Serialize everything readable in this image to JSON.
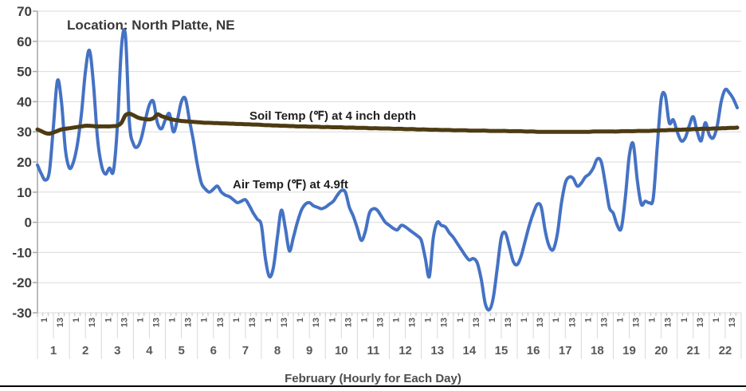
{
  "chart": {
    "title": "Location: North Platte, NE",
    "x_axis_title": "February (Hourly for Each Day)",
    "soil_label": "Soil Temp (℉) at 4 inch depth",
    "air_label": "Air Temp (℉) at 4.9ft"
  },
  "colors": {
    "background": "#FFFFFF",
    "gridline": "#D9D9D9",
    "axis_line": "#A6A6A6",
    "minor_tick": "#BFBFBF",
    "separator": "#D9D9D9",
    "y_tick_label": "#3F3F3F",
    "x_tick_label": "#595959",
    "title_text": "#3B3838",
    "annotation_text": "#1F1F1F",
    "air_line": "#4472C4",
    "soil_line": "#4D3B12",
    "bottom_border": "#000000"
  },
  "chart_data": {
    "type": "line",
    "title": "Location: North Platte, NE",
    "xlabel": "February (Hourly for Each Day)",
    "ylabel": "",
    "ylim": [
      -30,
      70
    ],
    "y_ticks": [
      70,
      60,
      50,
      40,
      30,
      20,
      10,
      0,
      -10,
      -20,
      -30
    ],
    "grid": "horizontal",
    "legend_position": "inline annotations above each line",
    "days_in_month_shown": 22,
    "hours_per_day": 24,
    "x_day_labels": [
      "1",
      "2",
      "3",
      "4",
      "5",
      "6",
      "7",
      "8",
      "9",
      "10",
      "11",
      "12",
      "13",
      "14",
      "15",
      "16",
      "17",
      "18",
      "19",
      "20",
      "21",
      "22"
    ],
    "x_hour_tick_labels": [
      "1",
      "13"
    ],
    "sample_hours": [
      1,
      4,
      7,
      10,
      13,
      16,
      19,
      22
    ],
    "series": [
      {
        "name": "Air Temp (℉) at 4.9ft",
        "color": "#4472C4",
        "stroke_width": 4,
        "values_by_day": [
          [
            19,
            16,
            14,
            17,
            32,
            47,
            40,
            24
          ],
          [
            18,
            20,
            26,
            36,
            50,
            57,
            46,
            28
          ],
          [
            19,
            16,
            18,
            17,
            32,
            58,
            62,
            33
          ],
          [
            26,
            25,
            28,
            34,
            39,
            40,
            33,
            31
          ],
          [
            34,
            36,
            30,
            34,
            40,
            41,
            34,
            27
          ],
          [
            19,
            13,
            11,
            10,
            11,
            12,
            10,
            9
          ],
          [
            8.5,
            7.5,
            6.5,
            7,
            7.5,
            5.5,
            3,
            1
          ],
          [
            -1,
            -12,
            -18,
            -15,
            -5,
            4,
            -2,
            -9.5
          ],
          [
            -5,
            0,
            4,
            6,
            6.5,
            5.5,
            5,
            4.5
          ],
          [
            5,
            6,
            7,
            9,
            10.5,
            10,
            5,
            2
          ],
          [
            -2,
            -6,
            -3,
            3,
            4.5,
            4,
            2,
            0
          ],
          [
            -1,
            -2,
            -2.5,
            -1,
            -1.5,
            -2.5,
            -3.5,
            -4.5
          ],
          [
            -6,
            -12,
            -18,
            -5,
            0,
            -1,
            -1.5,
            -3.5
          ],
          [
            -5,
            -7,
            -9,
            -11,
            -12.5,
            -12,
            -13.5,
            -19
          ],
          [
            -27,
            -29,
            -25,
            -15,
            -5,
            -3.5,
            -8,
            -13
          ],
          [
            -14,
            -11,
            -6,
            -1,
            3,
            6,
            5,
            -3
          ],
          [
            -8,
            -9,
            -4,
            6,
            13,
            15,
            14.5,
            12
          ],
          [
            13,
            15,
            16,
            18,
            21,
            20,
            13,
            5
          ],
          [
            3,
            -1,
            -2,
            8,
            22,
            26,
            14,
            6
          ],
          [
            7,
            6.5,
            8,
            25,
            41,
            42,
            33,
            34
          ],
          [
            30,
            27,
            28,
            32,
            35,
            30,
            27,
            33
          ],
          [
            29,
            28,
            32,
            40,
            44,
            43,
            41,
            38
          ]
        ]
      },
      {
        "name": "Soil Temp (℉) at 4 inch depth",
        "color": "#4D3B12",
        "stroke_width": 5,
        "values_by_day": [
          [
            30.8,
            30.2,
            29.6,
            29.4,
            29.8,
            30.3,
            30.8,
            31
          ],
          [
            31.2,
            31.4,
            31.6,
            31.8,
            32,
            32,
            31.9,
            31.8
          ],
          [
            31.8,
            31.8,
            31.8,
            31.9,
            32,
            33,
            35.5,
            36
          ],
          [
            35.5,
            34.8,
            34.4,
            34.2,
            34.1,
            34.5,
            35.8,
            35.2
          ],
          [
            34.8,
            34.3,
            34,
            33.8,
            33.6,
            33.5,
            33.4,
            33.3
          ],
          [
            33.2,
            33.1,
            33,
            33,
            32.9,
            32.9,
            32.8,
            32.8
          ],
          [
            32.7,
            32.7,
            32.6,
            32.6,
            32.5,
            32.5,
            32.4,
            32.4
          ],
          [
            32.3,
            32.2,
            32.2,
            32.1,
            32.1,
            32,
            32,
            31.9
          ],
          [
            31.9,
            31.8,
            31.8,
            31.8,
            31.7,
            31.7,
            31.7,
            31.6
          ],
          [
            31.6,
            31.6,
            31.5,
            31.5,
            31.5,
            31.4,
            31.4,
            31.4
          ],
          [
            31.3,
            31.3,
            31.3,
            31.2,
            31.2,
            31.2,
            31.1,
            31.1
          ],
          [
            31.1,
            31,
            31,
            31,
            30.9,
            30.9,
            30.9,
            30.8
          ],
          [
            30.8,
            30.8,
            30.7,
            30.7,
            30.7,
            30.6,
            30.6,
            30.6
          ],
          [
            30.5,
            30.5,
            30.5,
            30.5,
            30.4,
            30.4,
            30.4,
            30.4
          ],
          [
            30.4,
            30.3,
            30.3,
            30.3,
            30.3,
            30.3,
            30.2,
            30.2
          ],
          [
            30.2,
            30.2,
            30.1,
            30.1,
            30.1,
            30,
            30,
            30
          ],
          [
            30,
            30,
            30,
            30,
            30,
            30,
            30,
            30
          ],
          [
            30,
            30,
            30,
            30.1,
            30.1,
            30.1,
            30.1,
            30.1
          ],
          [
            30.1,
            30.1,
            30.2,
            30.2,
            30.2,
            30.2,
            30.3,
            30.3
          ],
          [
            30.3,
            30.3,
            30.4,
            30.4,
            30.5,
            30.5,
            30.6,
            30.6
          ],
          [
            30.7,
            30.7,
            30.8,
            30.8,
            30.9,
            30.9,
            31,
            31
          ],
          [
            31,
            31.1,
            31.1,
            31.2,
            31.2,
            31.3,
            31.3,
            31.4
          ]
        ]
      }
    ]
  }
}
